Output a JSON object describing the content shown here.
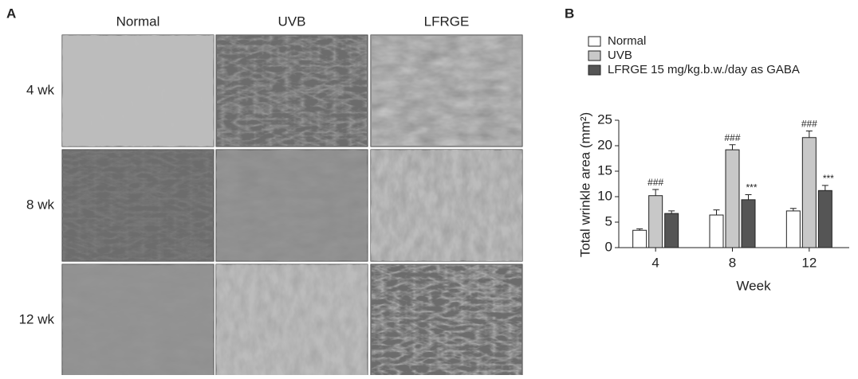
{
  "panel_a": {
    "label": "A",
    "columns": [
      "Normal",
      "UVB",
      "LFRGE"
    ],
    "rows": [
      "4 wk",
      "8 wk",
      "12 wk"
    ]
  },
  "chart_data": {
    "type": "bar",
    "panel_label": "B",
    "x_label": "Week",
    "y_label": "Total wrinkle area (mm²)",
    "categories": [
      "4",
      "8",
      "12"
    ],
    "series": [
      {
        "name": "Normal",
        "color": "#ffffff",
        "values": [
          3.4,
          6.4,
          7.2
        ],
        "errors": [
          0.3,
          1.0,
          0.5
        ]
      },
      {
        "name": "UVB",
        "color": "#c8c8c8",
        "values": [
          10.2,
          19.2,
          21.6
        ],
        "errors": [
          1.2,
          1.0,
          1.3
        ],
        "significance": [
          "###",
          "###",
          "###"
        ]
      },
      {
        "name": "LFRGE 15 mg/kg.b.w./day as GABA",
        "color": "#555555",
        "values": [
          6.7,
          9.4,
          11.2
        ],
        "errors": [
          0.5,
          1.0,
          1.0
        ],
        "significance": [
          null,
          "***",
          "***"
        ]
      }
    ],
    "ylim": [
      0,
      25
    ],
    "yticks": [
      0,
      5,
      10,
      15,
      20,
      25
    ],
    "grid": false
  }
}
